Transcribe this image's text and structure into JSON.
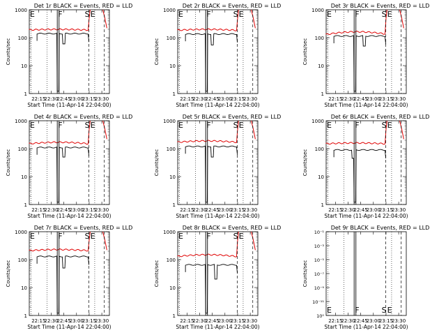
{
  "x_ticks": [
    "22:15",
    "22:30",
    "22:45",
    "23:00",
    "23:15",
    "23:30"
  ],
  "x_label": "Start Time (11-Apr-14 22:04:00)",
  "y_label": "Counts/sec",
  "y_ticks_log": [
    "1",
    "10",
    "100",
    "1000"
  ],
  "y_ticks_small": [
    "10⁻¹",
    "10⁻³",
    "10⁻⁵",
    "10⁻⁷",
    "10⁻⁹",
    "10⁻¹¹",
    "10⁰"
  ],
  "markers": {
    "e": "E",
    "f": "F",
    "s": "S",
    "se": "S|E"
  },
  "colors": {
    "events": "#000000",
    "lld": "#e00000"
  },
  "chart_data": [
    {
      "type": "line",
      "title": "Det 1r BLACK = Events, RED = LLD",
      "ylog": true,
      "ylim": [
        1,
        1000
      ],
      "events_level": 140,
      "events_dips": [
        [
          22.75,
          60
        ]
      ],
      "lld_start": 190,
      "lld_mid": 200,
      "lld_end": 185
    },
    {
      "type": "line",
      "title": "Det 2r BLACK = Events, RED = LLD",
      "ylog": true,
      "ylim": [
        1,
        1000
      ],
      "events_level": 135,
      "events_dips": [
        [
          22.75,
          55
        ]
      ],
      "lld_start": 185,
      "lld_mid": 200,
      "lld_end": 180
    },
    {
      "type": "line",
      "title": "Det 3r BLACK = Events, RED = LLD",
      "ylog": true,
      "ylim": [
        1,
        1000
      ],
      "events_level": 115,
      "events_dips": [
        [
          22.82,
          50
        ]
      ],
      "lld_start": 130,
      "lld_mid": 160,
      "lld_end": 150
    },
    {
      "type": "line",
      "title": "Det 4r BLACK = Events, RED = LLD",
      "ylog": true,
      "ylim": [
        1,
        1000
      ],
      "events_level": 110,
      "events_dips": [
        [
          22.75,
          50
        ]
      ],
      "lld_start": 150,
      "lld_mid": 170,
      "lld_end": 150
    },
    {
      "type": "line",
      "title": "Det 5r BLACK = Events, RED = LLD",
      "ylog": true,
      "ylim": [
        1,
        1000
      ],
      "events_level": 120,
      "events_dips": [
        [
          22.75,
          50
        ]
      ],
      "lld_start": 170,
      "lld_mid": 190,
      "lld_end": 170
    },
    {
      "type": "line",
      "title": "Det 6r BLACK = Events, RED = LLD",
      "ylog": true,
      "ylim": [
        1,
        1000
      ],
      "events_level": 90,
      "events_dips": [
        [
          22.6,
          45
        ]
      ],
      "lld_start": 150,
      "lld_mid": 160,
      "lld_end": 150
    },
    {
      "type": "line",
      "title": "Det 7r BLACK = Events, RED = LLD",
      "ylog": true,
      "ylim": [
        1,
        1000
      ],
      "events_level": 130,
      "events_dips": [
        [
          22.75,
          50
        ]
      ],
      "lld_start": 210,
      "lld_mid": 230,
      "lld_end": 210
    },
    {
      "type": "line",
      "title": "Det 8r BLACK = Events, RED = LLD",
      "ylog": true,
      "ylim": [
        1,
        1000
      ],
      "events_level": 65,
      "events_dips": [
        [
          22.82,
          20
        ]
      ],
      "lld_start": 130,
      "lld_mid": 150,
      "lld_end": 130
    },
    {
      "type": "line",
      "title": "Det 9r BLACK = Events, RED = LLD",
      "ylog": false,
      "empty": true
    }
  ]
}
